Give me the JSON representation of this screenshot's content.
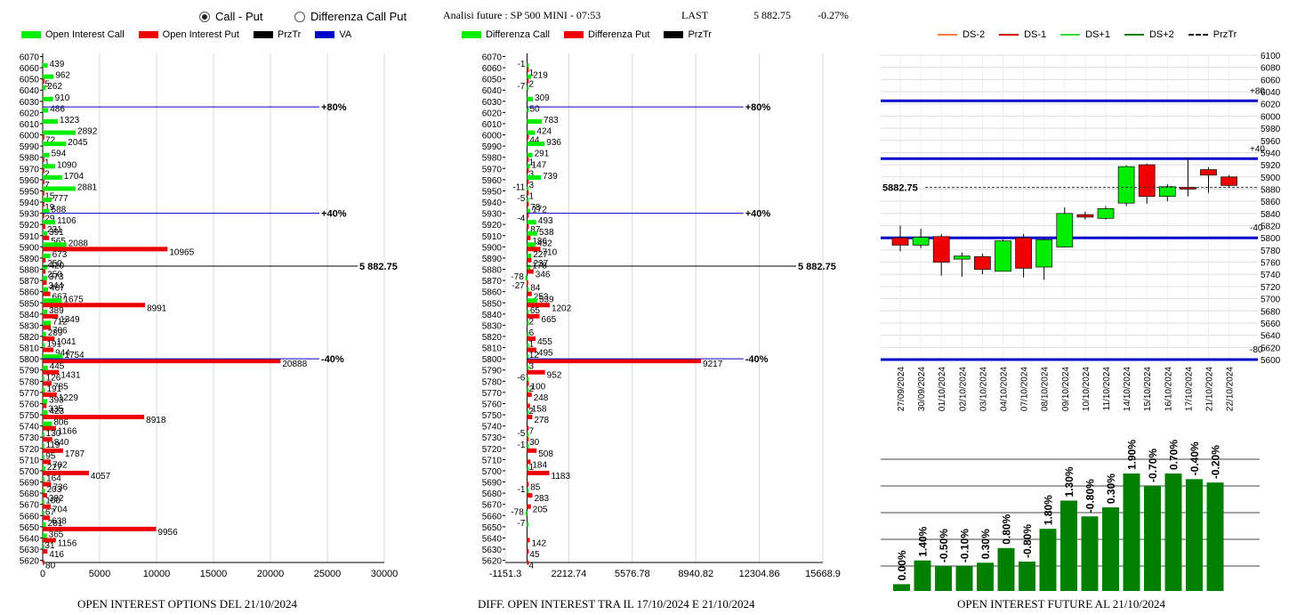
{
  "header": {
    "radio_call_put": "Call - Put",
    "radio_diff": "Differenza Call Put",
    "title": "Analisi future : SP 500 MINI - 07:53",
    "last_label": "LAST",
    "last_value": "5 882.75",
    "change": "-0.27%"
  },
  "legend1": {
    "oi_call": "Open Interest Call",
    "oi_put": "Open Interest Put",
    "prztr": "PrzTr",
    "va": "VA"
  },
  "legend2": {
    "diff_call": "Differenza Call",
    "diff_put": "Differenza Put",
    "prztr": "PrzTr"
  },
  "legend3": {
    "ds_m2": "DS-2",
    "ds_m1": "DS-1",
    "ds_p1": "DS+1",
    "ds_p2": "DS+2",
    "prztr": "PrzTr"
  },
  "colors": {
    "call": "#00ee00",
    "put": "#ee0000",
    "va": "#0000cc",
    "green_bar": "#008000",
    "ds_m2": "#ff8040",
    "ds_m1": "#cc0000",
    "ds_p1": "#33dd33",
    "ds_p2": "#008000"
  },
  "captions": {
    "oi": "OPEN INTEREST OPTIONS DEL 21/10/2024",
    "diff": "DIFF. OPEN INTEREST TRA IL 17/10/2024 E 21/10/2024",
    "future": "OPEN INTEREST FUTURE AL 21/10/2024"
  },
  "chart_data": [
    {
      "type": "bar",
      "title": "OPEN INTEREST OPTIONS DEL 21/10/2024",
      "strikes": [
        6070,
        6060,
        6050,
        6040,
        6030,
        6020,
        6010,
        6000,
        5990,
        5980,
        5970,
        5960,
        5950,
        5940,
        5930,
        5920,
        5910,
        5900,
        5890,
        5880,
        5870,
        5860,
        5850,
        5840,
        5830,
        5820,
        5810,
        5800,
        5790,
        5780,
        5770,
        5760,
        5750,
        5740,
        5730,
        5720,
        5710,
        5700,
        5690,
        5680,
        5670,
        5660,
        5650,
        5640,
        5630,
        5620
      ],
      "series": [
        {
          "name": "Open Interest Call",
          "values": [
            0,
            439,
            962,
            262,
            910,
            486,
            1323,
            2892,
            2045,
            594,
            1090,
            1704,
            2881,
            777,
            588,
            1106,
            391,
            2088,
            673,
            420,
            373,
            467,
            1675,
            389,
            712,
            289,
            191,
            1754,
            445,
            126,
            191,
            393,
            423,
            806,
            130,
            119,
            95,
            227,
            164,
            203,
            100,
            67,
            281,
            365,
            31,
            0
          ]
        },
        {
          "name": "Open Interest Put",
          "values": [
            0,
            0,
            5,
            0,
            0,
            0,
            0,
            72,
            0,
            1,
            2,
            7,
            15,
            19,
            29,
            231,
            565,
            10965,
            250,
            250,
            344,
            667,
            8991,
            1349,
            706,
            1041,
            944,
            20888,
            1431,
            785,
            1229,
            335,
            8918,
            1166,
            840,
            1787,
            702,
            4057,
            736,
            382,
            704,
            638,
            9956,
            1156,
            416,
            80
          ]
        }
      ],
      "xlim": [
        0,
        30000
      ],
      "xticks": [
        "0",
        "5000",
        "10000",
        "15000",
        "20000",
        "25000",
        "30000"
      ],
      "markers": [
        {
          "strike": 6025,
          "label": "+80%"
        },
        {
          "strike": 5930,
          "label": "+40%"
        },
        {
          "strike": 5882.75,
          "label": "5 882.75"
        },
        {
          "strike": 5800,
          "label": "-40%"
        }
      ]
    },
    {
      "type": "bar",
      "title": "DIFF. OPEN INTEREST TRA IL 17/10/2024 E 21/10/2024",
      "strikes": [
        6070,
        6060,
        6050,
        6040,
        6030,
        6020,
        6010,
        6000,
        5990,
        5980,
        5970,
        5960,
        5950,
        5940,
        5930,
        5920,
        5910,
        5900,
        5890,
        5880,
        5870,
        5860,
        5850,
        5840,
        5830,
        5820,
        5810,
        5800,
        5790,
        5780,
        5770,
        5760,
        5750,
        5740,
        5730,
        5720,
        5710,
        5700,
        5690,
        5680,
        5670,
        5660,
        5650,
        5640,
        5630,
        5620
      ],
      "series": [
        {
          "name": "Differenza Call",
          "values": [
            0,
            -1,
            219,
            -7,
            309,
            50,
            783,
            424,
            936,
            291,
            147,
            739,
            -11,
            -5,
            172,
            493,
            538,
            452,
            227,
            178,
            -78,
            84,
            539,
            65,
            2,
            6,
            1,
            12,
            3,
            -6,
            2,
            0,
            2,
            0,
            -5,
            -1,
            0,
            1,
            0,
            -1,
            0,
            -78,
            -7,
            0,
            0,
            0
          ]
        },
        {
          "name": "Differenza Put",
          "values": [
            0,
            1,
            2,
            0,
            0,
            0,
            0,
            44,
            0,
            1,
            3,
            3,
            1,
            78,
            -4,
            87,
            186,
            710,
            237,
            346,
            -27,
            253,
            1202,
            665,
            0,
            455,
            495,
            9217,
            952,
            100,
            248,
            158,
            278,
            7,
            30,
            508,
            184,
            1183,
            85,
            283,
            205,
            0,
            0,
            142,
            45,
            4
          ]
        }
      ],
      "xlim": [
        -1151.3,
        15668.9
      ],
      "xticks": [
        "-1151.3",
        "2212.74",
        "5576.78",
        "8940.82",
        "12304.86",
        "15668.9"
      ],
      "markers": [
        {
          "strike": 6025,
          "label": "+80%"
        },
        {
          "strike": 5930,
          "label": "+40%"
        },
        {
          "strike": 5882.75,
          "label": "5 882.75"
        },
        {
          "strike": 5800,
          "label": "-40%"
        }
      ]
    },
    {
      "type": "candlestick",
      "dates": [
        "27/09/2024",
        "30/09/2024",
        "01/10/2024",
        "02/10/2024",
        "03/10/2024",
        "04/10/2024",
        "07/10/2024",
        "08/10/2024",
        "09/10/2024",
        "10/10/2024",
        "11/10/2024",
        "14/10/2024",
        "15/10/2024",
        "16/10/2024",
        "17/10/2024",
        "21/10/2024",
        "22/10/2024"
      ],
      "open": [
        5800,
        5788,
        5802,
        5765,
        5769,
        5745,
        5800,
        5752,
        5785,
        5838,
        5832,
        5857,
        5920,
        5868,
        5883,
        5912,
        5900
      ],
      "close": [
        5788,
        5801,
        5760,
        5770,
        5748,
        5795,
        5750,
        5797,
        5840,
        5834,
        5848,
        5917,
        5868,
        5884,
        5880,
        5903,
        5886
      ],
      "high": [
        5820,
        5815,
        5806,
        5776,
        5774,
        5797,
        5806,
        5800,
        5850,
        5843,
        5852,
        5919,
        5922,
        5888,
        5932,
        5916,
        5903
      ],
      "low": [
        5778,
        5783,
        5738,
        5736,
        5740,
        5746,
        5735,
        5731,
        5784,
        5830,
        5830,
        5852,
        5856,
        5860,
        5868,
        5874,
        5884
      ],
      "ylim": [
        5600,
        6100
      ],
      "yticks": [
        "6100",
        "6080",
        "6060",
        "6040",
        "6020",
        "6000",
        "5980",
        "5960",
        "5940",
        "5920",
        "5900",
        "5880",
        "5860",
        "5840",
        "5820",
        "5800",
        "5780",
        "5760",
        "5740",
        "5720",
        "5700",
        "5680",
        "5660",
        "5640",
        "5620",
        "5600"
      ],
      "levels": [
        {
          "value": 6025,
          "label": "+80"
        },
        {
          "value": 5930,
          "label": "+40"
        },
        {
          "value": 5800,
          "label": "-40"
        },
        {
          "value": 5600,
          "label": "-80"
        }
      ],
      "price_label": "5882.75",
      "price": 5882.75
    },
    {
      "type": "bar",
      "title": "OPEN INTEREST FUTURE AL 21/10/2024",
      "values": [
        6,
        27,
        22,
        22,
        25,
        38,
        26,
        55,
        80,
        66,
        74,
        104,
        93,
        104,
        99,
        96
      ],
      "labels": [
        "0.00%",
        "1.40%",
        "-0.50%",
        "-0.10%",
        "0.30%",
        "0.80%",
        "-0.80%",
        "1.80%",
        "1.30%",
        "-0.80%",
        "0.30%",
        "1.90%",
        "-0.70%",
        "0.70%",
        "-0.40%",
        "-0.20%"
      ]
    }
  ]
}
